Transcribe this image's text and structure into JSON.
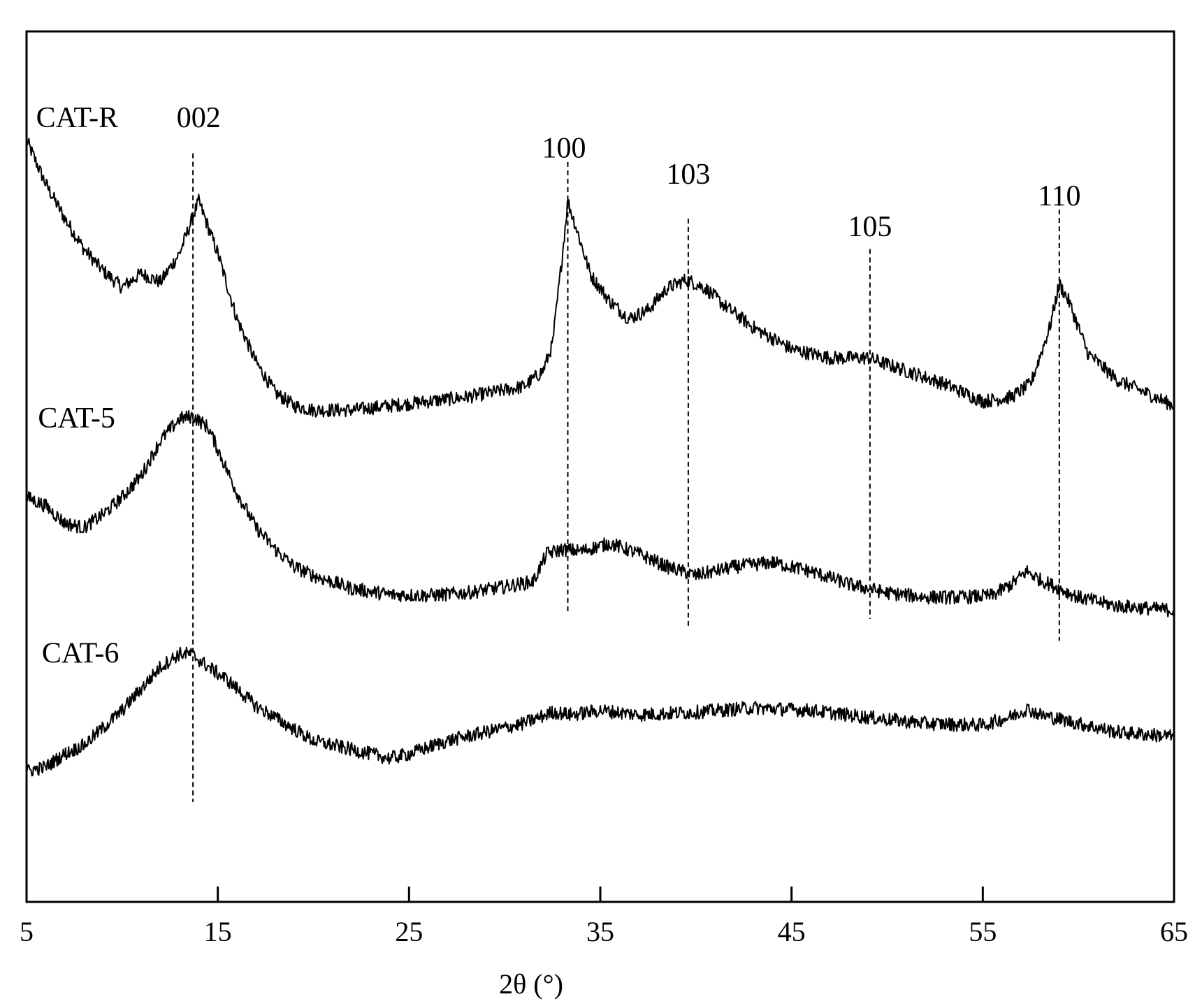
{
  "chart_data": {
    "type": "line",
    "xlabel": "2θ (°)",
    "ylabel": "",
    "xlim": [
      5,
      65
    ],
    "ylim": [
      0,
      100
    ],
    "x_ticks": [
      5,
      15,
      25,
      35,
      45,
      55,
      65
    ],
    "y_ticks": false,
    "grid": false,
    "legend": "none",
    "series": [
      {
        "name": "CAT-R",
        "label_x": 5.5,
        "label_y": 89,
        "points": [
          [
            5,
            87.5
          ],
          [
            6,
            82.5
          ],
          [
            7,
            78.5
          ],
          [
            8,
            75
          ],
          [
            9,
            72.5
          ],
          [
            10,
            70.6
          ],
          [
            11,
            72.2
          ],
          [
            12,
            71.2
          ],
          [
            13,
            74.5
          ],
          [
            14,
            80.5
          ],
          [
            15,
            74.5
          ],
          [
            16,
            67
          ],
          [
            17,
            62
          ],
          [
            18,
            58.5
          ],
          [
            19,
            57
          ],
          [
            20,
            56.5
          ],
          [
            22,
            56.5
          ],
          [
            24,
            57
          ],
          [
            26,
            57.5
          ],
          [
            28,
            58
          ],
          [
            30,
            58.8
          ],
          [
            31,
            59.2
          ],
          [
            32,
            61
          ],
          [
            32.5,
            64
          ],
          [
            33,
            74
          ],
          [
            33.3,
            80.5
          ],
          [
            33.8,
            77
          ],
          [
            34.5,
            72
          ],
          [
            35.5,
            69
          ],
          [
            36.5,
            67
          ],
          [
            37.5,
            68
          ],
          [
            38.5,
            70.5
          ],
          [
            39.5,
            71.5
          ],
          [
            40.5,
            70.5
          ],
          [
            41.5,
            68.5
          ],
          [
            43,
            66
          ],
          [
            45,
            63.5
          ],
          [
            47,
            62.5
          ],
          [
            49,
            62.5
          ],
          [
            51,
            61
          ],
          [
            53,
            59.5
          ],
          [
            55,
            57.5
          ],
          [
            56.5,
            58
          ],
          [
            57.5,
            59.5
          ],
          [
            58.5,
            66
          ],
          [
            59,
            71
          ],
          [
            59.5,
            69
          ],
          [
            60.5,
            63
          ],
          [
            62,
            60
          ],
          [
            63.5,
            58.5
          ],
          [
            65,
            57
          ]
        ]
      },
      {
        "name": "CAT-5",
        "label_x": 5.6,
        "label_y": 54.5,
        "points": [
          [
            5,
            46.5
          ],
          [
            6,
            45.5
          ],
          [
            7,
            43.5
          ],
          [
            8,
            43
          ],
          [
            9,
            44.5
          ],
          [
            10,
            46.5
          ],
          [
            11,
            49
          ],
          [
            12,
            53
          ],
          [
            13,
            55.5
          ],
          [
            13.7,
            55.8
          ],
          [
            14.5,
            54.5
          ],
          [
            15,
            52
          ],
          [
            16,
            47
          ],
          [
            17,
            43
          ],
          [
            18,
            40.5
          ],
          [
            19,
            38.5
          ],
          [
            20,
            37.5
          ],
          [
            22,
            36
          ],
          [
            24,
            35.3
          ],
          [
            26,
            35.2
          ],
          [
            28,
            35.5
          ],
          [
            30,
            36.2
          ],
          [
            31.5,
            36.8
          ],
          [
            32.2,
            40
          ],
          [
            33,
            40.5
          ],
          [
            34,
            40.3
          ],
          [
            35.5,
            41.2
          ],
          [
            37,
            40
          ],
          [
            38.5,
            38.5
          ],
          [
            40,
            37.5
          ],
          [
            42,
            38.5
          ],
          [
            44,
            39
          ],
          [
            46,
            38
          ],
          [
            48,
            36.5
          ],
          [
            50,
            35.5
          ],
          [
            52,
            35
          ],
          [
            54,
            35
          ],
          [
            55.5,
            35.2
          ],
          [
            56.5,
            36.5
          ],
          [
            57.3,
            38
          ],
          [
            58,
            37
          ],
          [
            59,
            36
          ],
          [
            60,
            35
          ],
          [
            62,
            34
          ],
          [
            65,
            33.5
          ]
        ]
      },
      {
        "name": "CAT-6",
        "label_x": 5.8,
        "label_y": 27.5,
        "points": [
          [
            5,
            15
          ],
          [
            6,
            15.5
          ],
          [
            7,
            17
          ],
          [
            8,
            18
          ],
          [
            9,
            20
          ],
          [
            10,
            22
          ],
          [
            11,
            24.5
          ],
          [
            12,
            27
          ],
          [
            13,
            28.5
          ],
          [
            13.6,
            28.5
          ],
          [
            14.5,
            27
          ],
          [
            15.5,
            25.5
          ],
          [
            17,
            22.5
          ],
          [
            18.5,
            20.5
          ],
          [
            20,
            18.5
          ],
          [
            22,
            17.5
          ],
          [
            24,
            16.5
          ],
          [
            25,
            17
          ],
          [
            27,
            18.5
          ],
          [
            29,
            19.5
          ],
          [
            31,
            20.5
          ],
          [
            32.5,
            21.8
          ],
          [
            33.5,
            21.5
          ],
          [
            35,
            22
          ],
          [
            37,
            21.5
          ],
          [
            40,
            21.8
          ],
          [
            43,
            22.3
          ],
          [
            46,
            22
          ],
          [
            49,
            21.2
          ],
          [
            52,
            20.5
          ],
          [
            55,
            20.3
          ],
          [
            56.5,
            21.3
          ],
          [
            57.3,
            22.2
          ],
          [
            58,
            21.5
          ],
          [
            60,
            20.5
          ],
          [
            62,
            19.5
          ],
          [
            65,
            19
          ]
        ]
      }
    ],
    "reference_lines": [
      {
        "label": "002",
        "x": 13.7,
        "y_top": 86,
        "y_bottom": 11.5,
        "label_x": 14.0,
        "label_y": 89
      },
      {
        "label": "100",
        "x": 33.3,
        "y_top": 85,
        "y_bottom": 33,
        "label_x": 33.1,
        "label_y": 85.5
      },
      {
        "label": "103",
        "x": 39.6,
        "y_top": 78.5,
        "y_bottom": 31.5,
        "label_x": 39.6,
        "label_y": 82.5
      },
      {
        "label": "105",
        "x": 49.1,
        "y_top": 75,
        "y_bottom": 32.5,
        "label_x": 49.1,
        "label_y": 76.5
      },
      {
        "label": "110",
        "x": 59.0,
        "y_top": 80.5,
        "y_bottom": 30,
        "label_x": 59.0,
        "label_y": 80
      }
    ]
  }
}
